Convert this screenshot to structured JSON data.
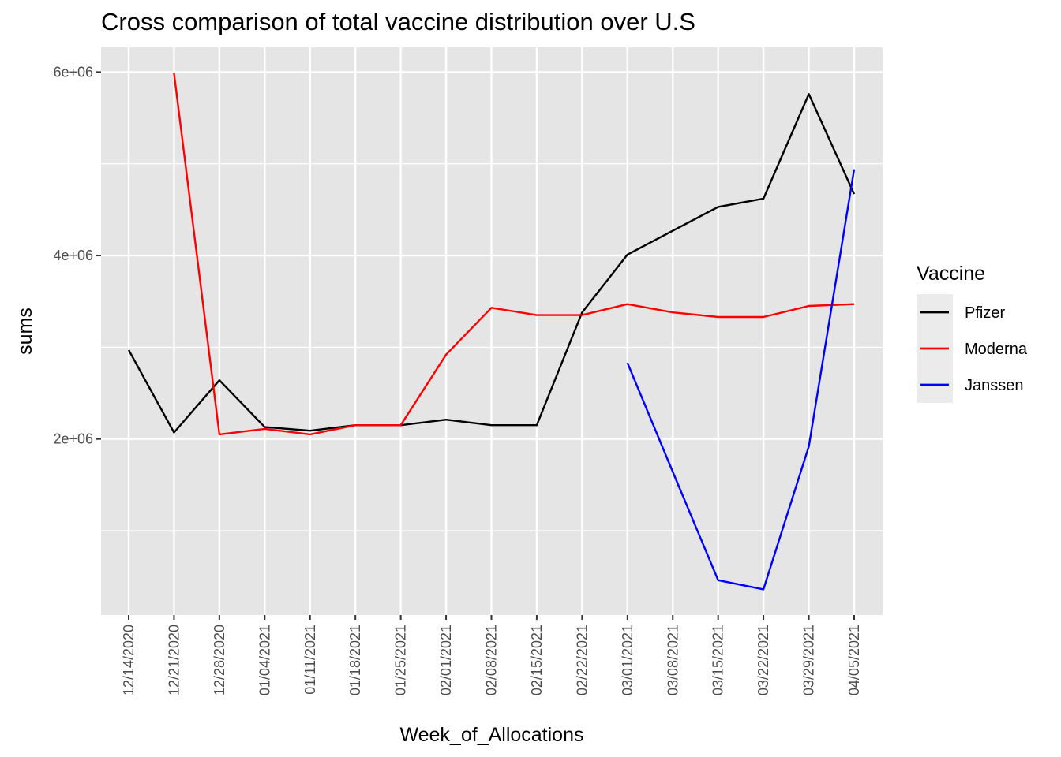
{
  "chart_data": {
    "type": "line",
    "title": "Cross comparison of total vaccine distribution over U.S",
    "xlabel": "Week_of_Allocations",
    "ylabel": "sums",
    "categories": [
      "12/14/2020",
      "12/21/2020",
      "12/28/2020",
      "01/04/2021",
      "01/11/2021",
      "01/18/2021",
      "01/25/2021",
      "02/01/2021",
      "02/08/2021",
      "02/15/2021",
      "02/22/2021",
      "03/01/2021",
      "03/08/2021",
      "03/15/2021",
      "03/22/2021",
      "03/29/2021",
      "04/05/2021"
    ],
    "y_ticks": [
      {
        "value": 2000000,
        "label": "2e+06"
      },
      {
        "value": 4000000,
        "label": "4e+06"
      },
      {
        "value": 6000000,
        "label": "6e+06"
      }
    ],
    "y_minor_ticks": [
      1000000,
      3000000,
      5000000
    ],
    "ylim": [
      80000,
      6270000
    ],
    "grid": true,
    "background": "#e5e5e5",
    "legend": {
      "title": "Vaccine",
      "position": "right"
    },
    "series": [
      {
        "name": "Pfizer",
        "color": "#000000",
        "values": [
          2970000,
          2070000,
          2640000,
          2130000,
          2090000,
          2150000,
          2150000,
          2210000,
          2150000,
          2150000,
          3380000,
          4010000,
          4270000,
          4530000,
          4620000,
          5760000,
          4670000
        ]
      },
      {
        "name": "Moderna",
        "color": "#ff0000",
        "values": [
          null,
          5990000,
          2050000,
          2110000,
          2050000,
          2150000,
          2150000,
          2920000,
          3430000,
          3350000,
          3350000,
          3470000,
          3380000,
          3330000,
          3330000,
          3450000,
          3470000
        ]
      },
      {
        "name": "Janssen",
        "color": "#0000ff",
        "values": [
          null,
          null,
          null,
          null,
          null,
          null,
          null,
          null,
          null,
          null,
          null,
          2830000,
          1640000,
          460000,
          360000,
          1920000,
          4940000
        ]
      }
    ]
  }
}
